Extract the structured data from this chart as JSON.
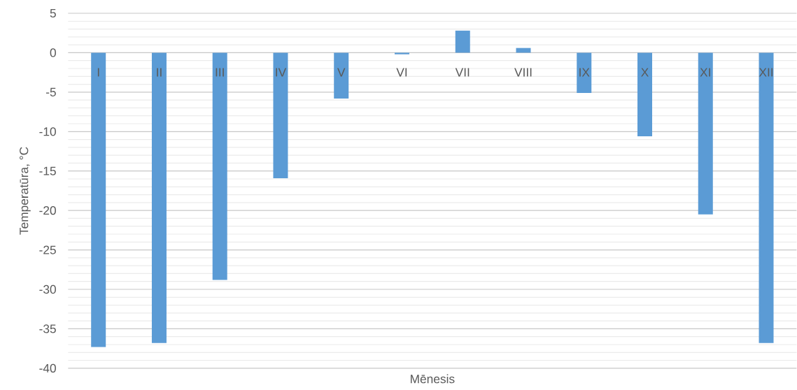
{
  "chart_data": {
    "type": "bar",
    "xlabel": "Mēnesis",
    "ylabel": "Temperatūra, °C",
    "categories": [
      "I",
      "II",
      "III",
      "IV",
      "V",
      "VI",
      "VII",
      "VIII",
      "IX",
      "X",
      "XI",
      "XII"
    ],
    "values": [
      -37.3,
      -36.8,
      -28.8,
      -15.9,
      -5.8,
      -0.2,
      2.8,
      0.6,
      -5.1,
      -10.6,
      -20.5,
      -36.8
    ],
    "color": "#5b9bd5",
    "ylim": [
      -40,
      5
    ],
    "yticks": [
      -40,
      -35,
      -30,
      -25,
      -20,
      -15,
      -10,
      -5,
      0,
      5
    ],
    "grid": "y"
  }
}
